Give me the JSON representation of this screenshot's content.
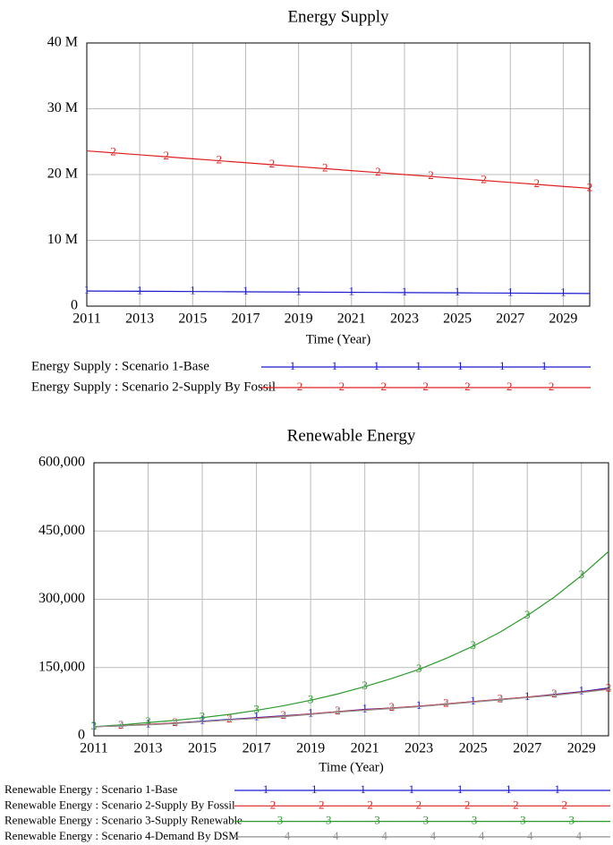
{
  "chart_data": [
    {
      "type": "line",
      "title": "Energy Supply",
      "x_label": "Time (Year)",
      "x": [
        2011,
        2012,
        2013,
        2014,
        2015,
        2016,
        2017,
        2018,
        2019,
        2020,
        2021,
        2022,
        2023,
        2024,
        2025,
        2026,
        2027,
        2028,
        2029,
        2030
      ],
      "xlim": [
        2011,
        2030
      ],
      "xticks": [
        2011,
        2013,
        2015,
        2017,
        2019,
        2021,
        2023,
        2025,
        2027,
        2029
      ],
      "ylim": [
        0,
        40000000
      ],
      "yticks": [
        0,
        {
          "value": 10000000,
          "label": "10 M"
        },
        {
          "value": 20000000,
          "label": "20 M"
        },
        {
          "value": 30000000,
          "label": "30 M"
        },
        {
          "value": 40000000,
          "label": "40 M"
        }
      ],
      "grid": true,
      "series": [
        {
          "name": "Energy Supply : Scenario 1-Base",
          "marker": "1",
          "color": "#1a1ad0",
          "values": [
            2300000,
            2280000,
            2260000,
            2240000,
            2220000,
            2200000,
            2180000,
            2160000,
            2140000,
            2120000,
            2100000,
            2080000,
            2060000,
            2040000,
            2020000,
            2000000,
            1980000,
            1960000,
            1940000,
            1920000
          ]
        },
        {
          "name": "Energy Supply : Scenario 2-Supply By Fossil",
          "marker": "2",
          "color": "#e02020",
          "values": [
            23600000,
            23300000,
            23000000,
            22700000,
            22400000,
            22100000,
            21800000,
            21500000,
            21200000,
            20900000,
            20600000,
            20300000,
            20000000,
            19700000,
            19400000,
            19100000,
            18800000,
            18500000,
            18200000,
            17900000
          ]
        }
      ]
    },
    {
      "type": "line",
      "title": "Renewable Energy",
      "x_label": "Time (Year)",
      "x": [
        2011,
        2012,
        2013,
        2014,
        2015,
        2016,
        2017,
        2018,
        2019,
        2020,
        2021,
        2022,
        2023,
        2024,
        2025,
        2026,
        2027,
        2028,
        2029,
        2030
      ],
      "xlim": [
        2011,
        2030
      ],
      "xticks": [
        2011,
        2013,
        2015,
        2017,
        2019,
        2021,
        2023,
        2025,
        2027,
        2029
      ],
      "ylim": [
        0,
        600000
      ],
      "yticks": [
        0,
        {
          "value": 150000,
          "label": "150,000"
        },
        {
          "value": 300000,
          "label": "300,000"
        },
        {
          "value": 450000,
          "label": "450,000"
        },
        {
          "value": 600000,
          "label": "600,000"
        }
      ],
      "grid": true,
      "series": [
        {
          "name": "Renewable Energy : Scenario 1-Base",
          "marker": "1",
          "color": "#1a1ad0",
          "values": [
            20000,
            22000,
            25000,
            28000,
            32000,
            36000,
            40000,
            44000,
            48000,
            53000,
            58000,
            61000,
            65000,
            70000,
            75000,
            80000,
            85000,
            91000,
            97000,
            105000
          ]
        },
        {
          "name": "Renewable Energy : Scenario 2-Supply By Fossil",
          "marker": "2",
          "color": "#e02020",
          "values": [
            20000,
            22000,
            25000,
            28000,
            31000,
            35000,
            39000,
            43000,
            48000,
            53000,
            57000,
            61000,
            65000,
            70000,
            75000,
            80000,
            85000,
            90000,
            96000,
            103000
          ]
        },
        {
          "name": "Renewable Energy : Scenario 3-Supply Renewable",
          "marker": "3",
          "color": "#2a9a2a",
          "values": [
            20000,
            24000,
            29000,
            34000,
            40000,
            47000,
            56000,
            66000,
            78000,
            92000,
            108000,
            126000,
            146000,
            170000,
            197000,
            228000,
            264000,
            305000,
            352000,
            405000
          ]
        },
        {
          "name": "Renewable Energy : Scenario 4-Demand By DSM",
          "marker": "4",
          "color": "#909090",
          "values": [
            20000,
            22000,
            24000,
            27000,
            31000,
            35000,
            38000,
            42000,
            47000,
            52000,
            56000,
            60000,
            64000,
            69000,
            74000,
            79000,
            84000,
            89000,
            95000,
            102000
          ]
        }
      ]
    }
  ]
}
